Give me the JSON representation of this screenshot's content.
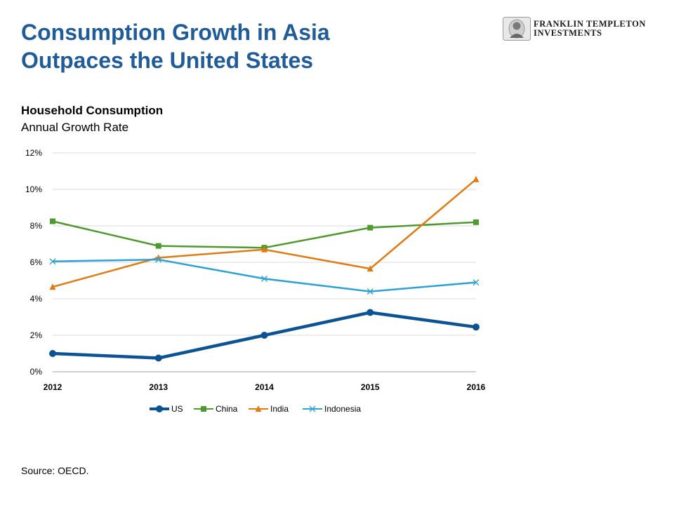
{
  "page": {
    "title_line1": "Consumption Growth in Asia",
    "title_line2": "Outpaces the United States",
    "source": "Source: OECD.",
    "title_color": "#1f5c99"
  },
  "logo": {
    "line1": "FRANKLIN TEMPLETON",
    "line2": "INVESTMENTS"
  },
  "chart_data": {
    "type": "line",
    "title": "Household Consumption",
    "subtitle": "Annual  Growth Rate",
    "x": [
      "2012",
      "2013",
      "2014",
      "2015",
      "2016"
    ],
    "ylim": [
      0,
      12
    ],
    "yticks": [
      0,
      2,
      4,
      6,
      8,
      10,
      12
    ],
    "ytick_labels": [
      "0%",
      "2%",
      "4%",
      "6%",
      "8%",
      "10%",
      "12%"
    ],
    "grid": true,
    "legend_position": "bottom",
    "series": [
      {
        "name": "US",
        "values": [
          1.0,
          0.75,
          2.0,
          3.25,
          2.45
        ],
        "color": "#0b5394",
        "marker": "circle"
      },
      {
        "name": "China",
        "values": [
          8.25,
          6.9,
          6.8,
          7.9,
          8.2
        ],
        "color": "#4e9a2f",
        "marker": "square"
      },
      {
        "name": "India",
        "values": [
          4.65,
          6.25,
          6.7,
          5.65,
          10.55
        ],
        "color": "#e07b12",
        "marker": "triangle"
      },
      {
        "name": "Indonesia",
        "values": [
          6.05,
          6.15,
          5.1,
          4.4,
          4.9
        ],
        "color": "#2ea1d6",
        "marker": "x"
      }
    ]
  }
}
